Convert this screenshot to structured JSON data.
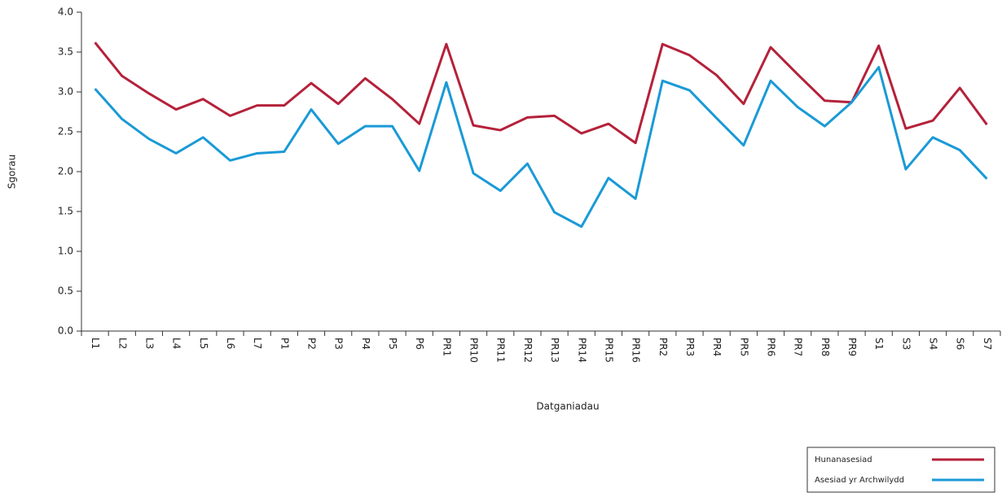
{
  "chart_data": {
    "type": "line",
    "x_label": "Datganiadau",
    "y_label": "Sgorau",
    "categories": [
      "L1",
      "L2",
      "L3",
      "L4",
      "L5",
      "L6",
      "L7",
      "P1",
      "P2",
      "P3",
      "P4",
      "P5",
      "P6",
      "PR1",
      "PR10",
      "PR11",
      "PR12",
      "PR13",
      "PR14",
      "PR15",
      "PR16",
      "PR2",
      "PR3",
      "PR4",
      "PR5",
      "PR6",
      "PR7",
      "PR8",
      "PR9",
      "S1",
      "S3",
      "S4",
      "S6",
      "S7"
    ],
    "series": [
      {
        "name": "Hunanasesiad",
        "color": "#b5213a",
        "values": [
          3.62,
          3.2,
          2.98,
          2.78,
          2.91,
          2.7,
          2.83,
          2.83,
          3.11,
          2.85,
          3.17,
          2.91,
          2.6,
          3.6,
          2.58,
          2.52,
          2.68,
          2.7,
          2.48,
          2.6,
          2.36,
          3.6,
          3.46,
          3.21,
          2.85,
          3.56,
          3.22,
          2.89,
          2.87,
          3.58,
          2.54,
          2.64,
          3.05,
          2.59
        ]
      },
      {
        "name": "Asesiad yr Archwilydd",
        "color": "#1a9ad6",
        "values": [
          3.04,
          2.66,
          2.41,
          2.23,
          2.43,
          2.14,
          2.23,
          2.25,
          2.78,
          2.35,
          2.57,
          2.57,
          2.01,
          3.12,
          1.98,
          1.76,
          2.1,
          1.49,
          1.31,
          1.92,
          1.66,
          3.14,
          3.02,
          2.67,
          2.33,
          3.14,
          2.81,
          2.57,
          2.87,
          3.31,
          2.03,
          2.43,
          2.27,
          1.91
        ]
      }
    ],
    "ylim": [
      0,
      4
    ],
    "yticks": [
      {
        "value": 0,
        "label": "0.0"
      },
      0.5,
      {
        "value": 1,
        "label": "1.0"
      },
      1.5,
      {
        "value": 2,
        "label": "2.0"
      },
      2.5,
      {
        "value": 3,
        "label": "3.0"
      },
      3.5,
      {
        "value": 4,
        "label": "4.0"
      }
    ],
    "legend": "bottom-right"
  }
}
